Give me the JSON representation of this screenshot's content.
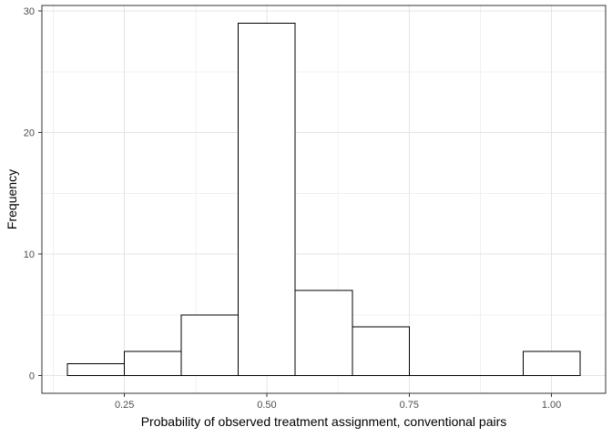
{
  "chart_data": {
    "type": "bar",
    "subtype": "histogram",
    "title": "",
    "xlabel": "Probability of observed treatment assignment, conventional pairs",
    "ylabel": "Frequency",
    "bin_edges": [
      0.15,
      0.25,
      0.35,
      0.45,
      0.55,
      0.65,
      0.75,
      0.85,
      0.95,
      1.05
    ],
    "counts": [
      1,
      2,
      5,
      29,
      7,
      4,
      0,
      0,
      2
    ],
    "total_n": 50,
    "xlim": [
      0.105,
      1.095
    ],
    "ylim": [
      -1.45,
      30.45
    ],
    "x_tick_values": [
      0.25,
      0.5,
      0.75,
      1.0
    ],
    "x_tick_labels": [
      "0.25",
      "0.50",
      "0.75",
      "1.00"
    ],
    "y_tick_values": [
      0,
      10,
      20,
      30
    ],
    "y_tick_labels": [
      "0",
      "10",
      "20",
      "30"
    ],
    "x_minor_gridlines": [
      0.125,
      0.375,
      0.625,
      0.875
    ],
    "y_minor_gridlines": [
      5,
      15,
      25
    ],
    "grid": true,
    "legend": "none",
    "colors": {
      "figure_bg": "#ffffff",
      "panel_bg": "#ffffff",
      "bar_fill": "#ffffff",
      "bar_stroke": "#000000",
      "grid_major": "#e4e4e4",
      "grid_minor": "#f0f0f0",
      "panel_border": "#333333",
      "tick": "#333333",
      "tick_label": "#4d4d4d",
      "axis_title": "#000000"
    }
  }
}
